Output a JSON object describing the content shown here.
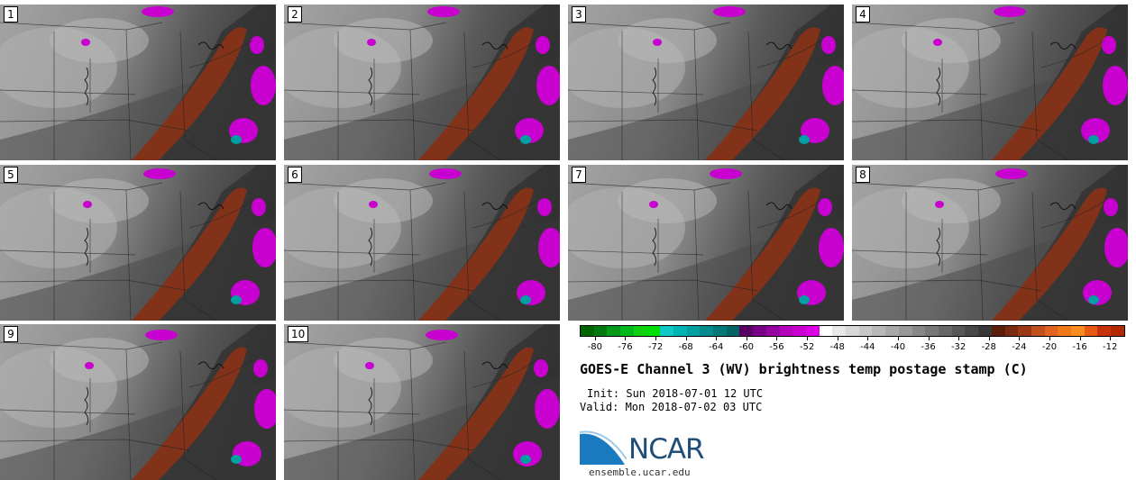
{
  "panels": [
    {
      "label": "1"
    },
    {
      "label": "2"
    },
    {
      "label": "3"
    },
    {
      "label": "4"
    },
    {
      "label": "5"
    },
    {
      "label": "6"
    },
    {
      "label": "7"
    },
    {
      "label": "8"
    },
    {
      "label": "9"
    },
    {
      "label": "10"
    }
  ],
  "colorbar": {
    "colors": [
      "#006400",
      "#007a10",
      "#009a18",
      "#00b81c",
      "#10d010",
      "#00e000",
      "#10c8c8",
      "#00b4b4",
      "#00a0a0",
      "#008c8c",
      "#007878",
      "#006464",
      "#5a0064",
      "#780084",
      "#9600a0",
      "#b400bc",
      "#c800d0",
      "#dc00e6",
      "#ffffff",
      "#e8e8e8",
      "#d8d8d8",
      "#c8c8c8",
      "#b8b8b8",
      "#a8a8a8",
      "#989898",
      "#888888",
      "#787878",
      "#686868",
      "#585858",
      "#484848",
      "#383838",
      "#5a1e0a",
      "#7a2a10",
      "#9a3816",
      "#c0501c",
      "#e06420",
      "#f07818",
      "#ff8c1e",
      "#e65a14",
      "#c8320a",
      "#b42800"
    ],
    "ticks": [
      "-80",
      "-76",
      "-72",
      "-68",
      "-64",
      "-60",
      "-56",
      "-52",
      "-48",
      "-44",
      "-40",
      "-36",
      "-32",
      "-28",
      "-24",
      "-20",
      "-16",
      "-12"
    ],
    "tick_values": [
      -80,
      -76,
      -72,
      -68,
      -64,
      -60,
      -56,
      -52,
      -48,
      -44,
      -40,
      -36,
      -32,
      -28,
      -24,
      -20,
      -16,
      -12
    ],
    "range": [
      -82,
      -10
    ]
  },
  "title": "GOES-E Channel 3 (WV) brightness temp postage stamp (C)",
  "init": "Init: Sun 2018-07-01 12 UTC",
  "valid": "Valid: Mon 2018-07-02 03 UTC",
  "logo": {
    "text": "NCAR",
    "color": "#1f4e79",
    "accent": "#1a7abf"
  },
  "site": "ensemble.ucar.edu"
}
